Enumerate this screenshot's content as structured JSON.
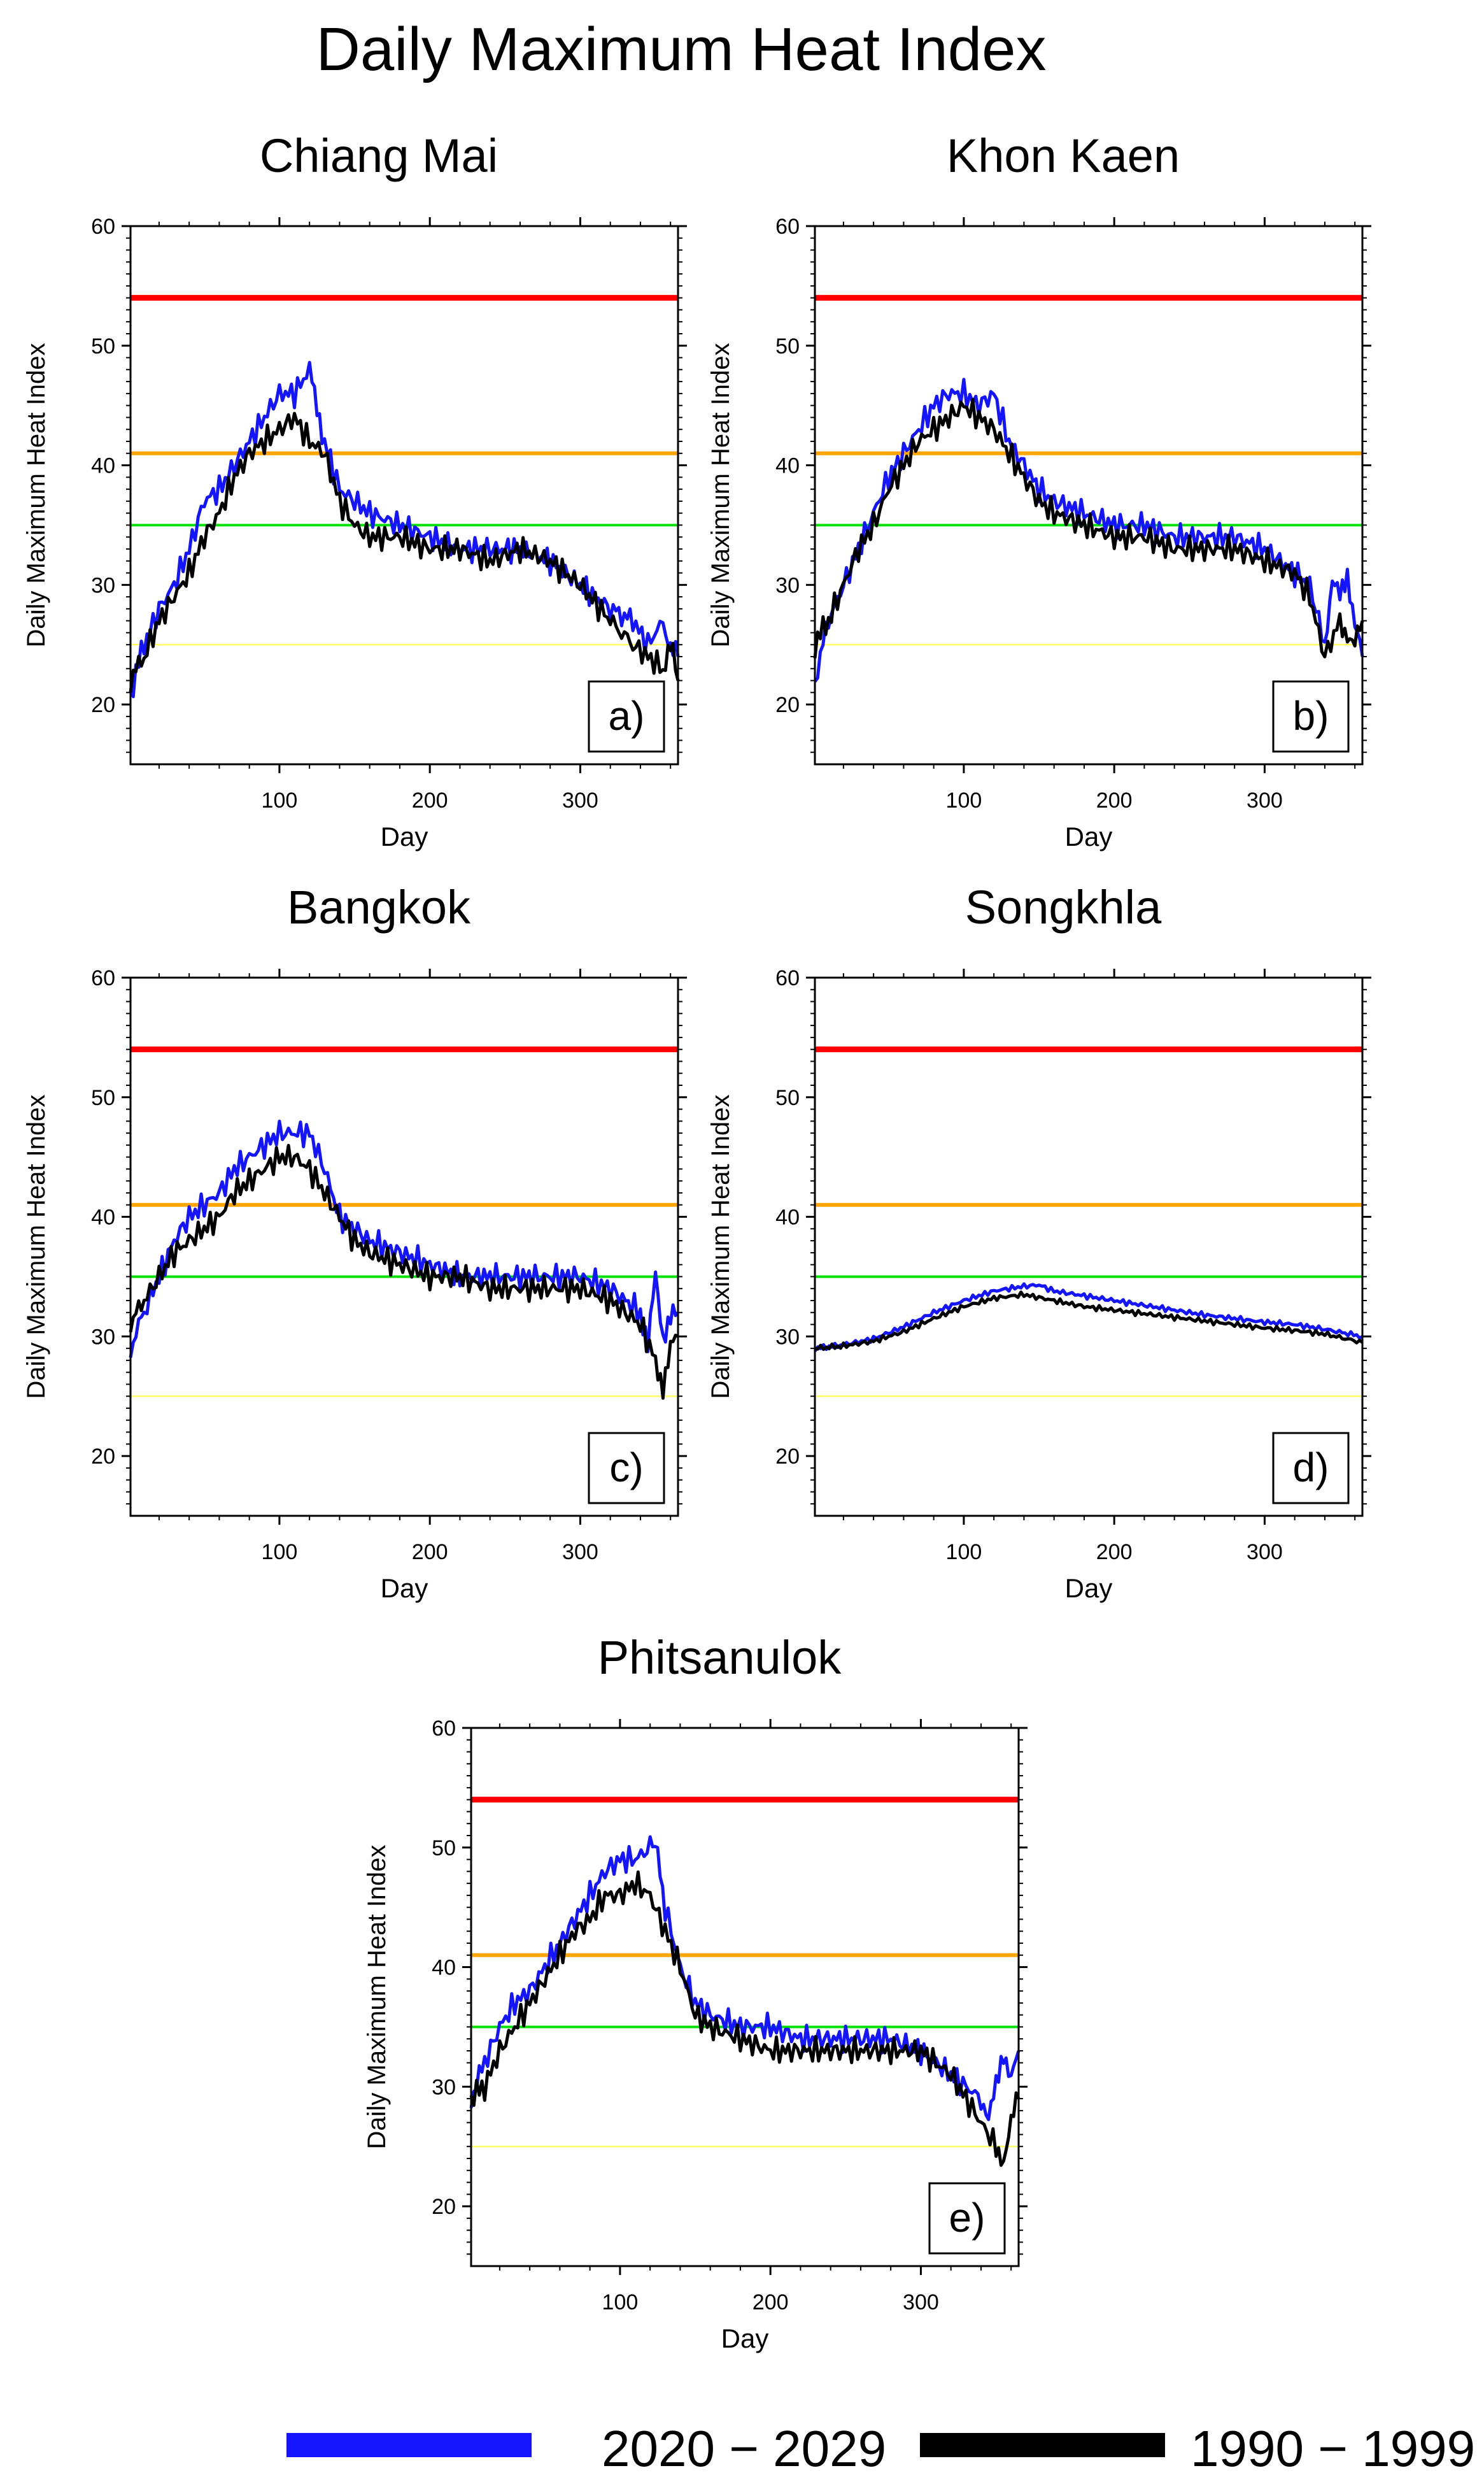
{
  "title": "Daily Maximum Heat Index",
  "legend": {
    "items": [
      {
        "label": "2020 − 2029",
        "color": "#1414ff"
      },
      {
        "label": "1990 − 1999",
        "color": "#000000"
      }
    ]
  },
  "colors": {
    "threshold_extreme_danger": "#ff0000",
    "threshold_danger": "#ffa500",
    "threshold_extreme_caution": "#00e000",
    "threshold_caution": "#ffff66"
  },
  "chart_data": [
    {
      "type": "line",
      "id": "a",
      "title": "Chiang Mai",
      "panel_label": "a)",
      "xlabel": "Day",
      "ylabel": "Daily Maximum Heat Index",
      "xlim": [
        1,
        365
      ],
      "ylim": [
        15,
        60
      ],
      "xticks": [
        100,
        200,
        300
      ],
      "yticks": [
        20,
        30,
        40,
        50,
        60
      ],
      "thresholds": [
        54,
        41,
        35,
        25
      ],
      "series": [
        {
          "name": "2020 − 2029",
          "color": "#1414ff",
          "x": [
            1,
            10,
            20,
            30,
            40,
            50,
            60,
            70,
            80,
            90,
            100,
            110,
            120,
            125,
            130,
            140,
            150,
            160,
            180,
            200,
            220,
            240,
            260,
            280,
            300,
            320,
            335,
            345,
            355,
            360,
            365
          ],
          "y": [
            21,
            25,
            28,
            30,
            33,
            37,
            38,
            40,
            42,
            44,
            46,
            46,
            48,
            45,
            42,
            38,
            37,
            36,
            35,
            34,
            33,
            33,
            33,
            32,
            30,
            28,
            27,
            25,
            27,
            25,
            24
          ]
        },
        {
          "name": "1990 − 1999",
          "color": "#000000",
          "x": [
            1,
            10,
            20,
            30,
            40,
            50,
            60,
            70,
            80,
            90,
            100,
            110,
            120,
            130,
            140,
            150,
            160,
            180,
            200,
            220,
            240,
            260,
            280,
            300,
            320,
            335,
            345,
            355,
            360,
            365
          ],
          "y": [
            22,
            24,
            27,
            29,
            31,
            34,
            36,
            39,
            41,
            42,
            43,
            44,
            42,
            41,
            37,
            35,
            34,
            34,
            33,
            33,
            32,
            33,
            32,
            30,
            27,
            25,
            24,
            23,
            25,
            22
          ]
        }
      ]
    },
    {
      "type": "line",
      "id": "b",
      "title": "Khon Kaen",
      "panel_label": "b)",
      "xlabel": "Day",
      "ylabel": "Daily Maximum Heat Index",
      "xlim": [
        1,
        365
      ],
      "ylim": [
        15,
        60
      ],
      "xticks": [
        100,
        200,
        300
      ],
      "yticks": [
        20,
        30,
        40,
        50,
        60
      ],
      "thresholds": [
        54,
        41,
        35,
        25
      ],
      "series": [
        {
          "name": "2020 − 2029",
          "color": "#1414ff",
          "x": [
            1,
            10,
            20,
            30,
            40,
            50,
            60,
            70,
            80,
            90,
            100,
            110,
            120,
            130,
            140,
            150,
            160,
            180,
            200,
            220,
            240,
            260,
            280,
            300,
            320,
            330,
            340,
            345,
            350,
            355,
            360,
            365
          ],
          "y": [
            22,
            27,
            30,
            33,
            36,
            39,
            41,
            43,
            45,
            46,
            46,
            45,
            46,
            42,
            40,
            38,
            37,
            36,
            35,
            35,
            34,
            34,
            34,
            33,
            31,
            30,
            25,
            30,
            29,
            31,
            27,
            24
          ]
        },
        {
          "name": "1990 − 1999",
          "color": "#000000",
          "x": [
            1,
            10,
            20,
            30,
            40,
            50,
            60,
            70,
            80,
            90,
            100,
            110,
            120,
            130,
            140,
            150,
            160,
            180,
            200,
            220,
            240,
            260,
            280,
            300,
            320,
            330,
            340,
            350,
            355,
            360,
            365
          ],
          "y": [
            25,
            27,
            30,
            33,
            35,
            38,
            40,
            42,
            43,
            44,
            45,
            44,
            43,
            41,
            39,
            37,
            36,
            35,
            34,
            34,
            33,
            33,
            33,
            32,
            31,
            29,
            24,
            27,
            26,
            25,
            27
          ]
        }
      ]
    },
    {
      "type": "line",
      "id": "c",
      "title": "Bangkok",
      "panel_label": "c)",
      "xlabel": "Day",
      "ylabel": "Daily Maximum Heat Index",
      "xlim": [
        1,
        365
      ],
      "ylim": [
        15,
        60
      ],
      "xticks": [
        100,
        200,
        300
      ],
      "yticks": [
        20,
        30,
        40,
        50,
        60
      ],
      "thresholds": [
        54,
        41,
        35,
        25
      ],
      "series": [
        {
          "name": "2020 − 2029",
          "color": "#1414ff",
          "x": [
            1,
            10,
            20,
            30,
            40,
            50,
            60,
            70,
            80,
            90,
            100,
            110,
            120,
            130,
            140,
            150,
            160,
            180,
            200,
            220,
            240,
            260,
            280,
            300,
            320,
            340,
            345,
            350,
            355,
            360,
            365
          ],
          "y": [
            29,
            32,
            35,
            38,
            40,
            41,
            42,
            44,
            45,
            46,
            47,
            47,
            47,
            44,
            40,
            39,
            38,
            37,
            36,
            35,
            35,
            35,
            35,
            35,
            34,
            32,
            29,
            35,
            30,
            32,
            32
          ]
        },
        {
          "name": "1990 − 1999",
          "color": "#000000",
          "x": [
            1,
            10,
            20,
            30,
            40,
            50,
            60,
            70,
            80,
            90,
            100,
            110,
            120,
            130,
            140,
            150,
            160,
            180,
            200,
            220,
            240,
            260,
            280,
            300,
            320,
            340,
            350,
            355,
            360,
            365
          ],
          "y": [
            31,
            33,
            35,
            37,
            38,
            39,
            40,
            42,
            43,
            44,
            45,
            45,
            44,
            42,
            40,
            38,
            37,
            36,
            35,
            35,
            34,
            34,
            34,
            34,
            33,
            31,
            28,
            26,
            29,
            30
          ]
        }
      ]
    },
    {
      "type": "line",
      "id": "d",
      "title": "Songkhla",
      "panel_label": "d)",
      "xlabel": "Day",
      "ylabel": "Daily Maximum Heat Index",
      "xlim": [
        1,
        365
      ],
      "ylim": [
        15,
        60
      ],
      "xticks": [
        100,
        200,
        300
      ],
      "yticks": [
        20,
        30,
        40,
        50,
        60
      ],
      "thresholds": [
        54,
        41,
        35,
        25
      ],
      "series": [
        {
          "name": "2020 − 2029",
          "color": "#1414ff",
          "x": [
            1,
            20,
            40,
            60,
            80,
            100,
            120,
            140,
            150,
            160,
            180,
            200,
            220,
            240,
            260,
            280,
            300,
            320,
            340,
            365
          ],
          "y": [
            29,
            29.3,
            29.8,
            30.8,
            32,
            33,
            33.8,
            34.2,
            34.3,
            33.8,
            33.4,
            33,
            32.6,
            32.2,
            31.8,
            31.5,
            31.2,
            31,
            30.6,
            30
          ]
        },
        {
          "name": "1990 − 1999",
          "color": "#000000",
          "x": [
            1,
            20,
            40,
            60,
            80,
            100,
            120,
            140,
            160,
            180,
            200,
            220,
            240,
            260,
            280,
            300,
            320,
            340,
            365
          ],
          "y": [
            29,
            29.2,
            29.6,
            30.4,
            31.5,
            32.5,
            33.2,
            33.5,
            33,
            32.5,
            32.2,
            31.9,
            31.6,
            31.3,
            31,
            30.7,
            30.5,
            30.2,
            29.5
          ]
        }
      ]
    },
    {
      "type": "line",
      "id": "e",
      "title": "Phitsanulok",
      "panel_label": "e)",
      "xlabel": "Day",
      "ylabel": "Daily Maximum Heat Index",
      "xlim": [
        1,
        365
      ],
      "ylim": [
        15,
        60
      ],
      "xticks": [
        100,
        200,
        300
      ],
      "yticks": [
        20,
        30,
        40,
        50,
        60
      ],
      "thresholds": [
        54,
        41,
        35,
        25
      ],
      "series": [
        {
          "name": "2020 − 2029",
          "color": "#1414ff",
          "x": [
            1,
            10,
            20,
            30,
            40,
            50,
            60,
            70,
            80,
            90,
            100,
            110,
            120,
            125,
            130,
            140,
            150,
            160,
            180,
            200,
            220,
            240,
            260,
            280,
            300,
            320,
            340,
            345,
            350,
            355,
            360,
            365
          ],
          "y": [
            29,
            32,
            35,
            37,
            38,
            40,
            42,
            44,
            46,
            48,
            49,
            49,
            50,
            50,
            45,
            40,
            37,
            36,
            35,
            35,
            34,
            34,
            34,
            34,
            33,
            31,
            29,
            27,
            30,
            33,
            31,
            33
          ]
        },
        {
          "name": "1990 − 1999",
          "color": "#000000",
          "x": [
            1,
            10,
            20,
            30,
            40,
            50,
            60,
            70,
            80,
            90,
            100,
            110,
            120,
            130,
            140,
            150,
            160,
            180,
            200,
            220,
            240,
            260,
            280,
            300,
            320,
            340,
            350,
            355,
            360,
            365
          ],
          "y": [
            29,
            30,
            33,
            35,
            37,
            39,
            41,
            43,
            44,
            46,
            46,
            47,
            46,
            43,
            40,
            36,
            35,
            34,
            33,
            33,
            33,
            33,
            33,
            33,
            31,
            27,
            25,
            24,
            27,
            29
          ]
        }
      ]
    }
  ]
}
